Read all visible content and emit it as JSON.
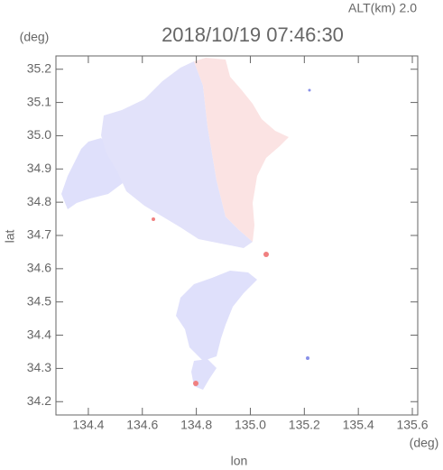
{
  "chart_data": {
    "type": "map",
    "title": "2018/10/19 07:46:30",
    "subtitle": "ALT(km) 2.0",
    "x_label": "lon",
    "y_label": "lat",
    "x_unit": "(deg)",
    "y_unit": "(deg)",
    "xlim": [
      134.28,
      135.62
    ],
    "ylim": [
      34.16,
      35.24
    ],
    "xticks": [
      134.4,
      134.6,
      134.8,
      {
        "value": 135,
        "label": "135.0"
      },
      135.2,
      135.4,
      135.6
    ],
    "yticks": [
      34.2,
      34.3,
      34.4,
      34.5,
      34.6,
      34.7,
      34.8,
      34.9,
      {
        "value": 35,
        "label": "35.0"
      },
      35.1,
      35.2
    ]
  }
}
